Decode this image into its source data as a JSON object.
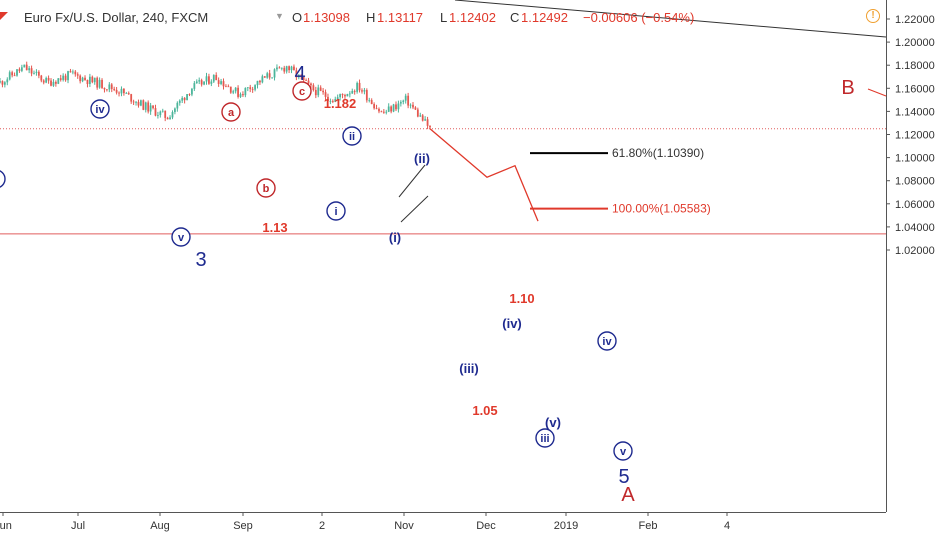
{
  "header": {
    "symbol": "Euro Fx/U.S. Dollar, 240, FXCM",
    "open_label": "O",
    "open": "1.13098",
    "high_label": "H",
    "high": "1.13117",
    "low_label": "L",
    "low": "1.12402",
    "close_label": "C",
    "close": "1.12492",
    "change": "−0.00606 (−0.54%)",
    "symbol_color": "#e0392b",
    "warning_icon": "warning-icon"
  },
  "colors": {
    "up": "#4bb59a",
    "down": "#e5574f",
    "wave_red": "#c0282b",
    "wave_blue": "#1e2a8f",
    "target_red": "#e0392b",
    "price_line": "#e05d5d"
  },
  "chart_data": {
    "type": "candlestick",
    "symbol": "EURUSD",
    "timeframe": "240",
    "ylim": [
      1.005,
      1.228
    ],
    "y_ticks": [
      "1.22000",
      "1.20000",
      "1.18000",
      "1.16000",
      "1.14000",
      "1.12000",
      "1.10000",
      "1.08000",
      "1.06000",
      "1.04000",
      "1.02000"
    ],
    "x_ticks": [
      "Jun",
      "Jul",
      "Aug",
      "Sep",
      "2",
      "Nov",
      "Dec",
      "2019",
      "Feb",
      "4"
    ],
    "close_path": [
      {
        "t": "Jun",
        "y": 1.165
      },
      {
        "t": "Jun+",
        "y": 1.178
      },
      {
        "t": "Jun++",
        "y": 1.165
      },
      {
        "t": "Jul",
        "y": 1.172
      },
      {
        "t": "Jul+",
        "y": 1.165
      },
      {
        "t": "Jul++",
        "y": 1.158
      },
      {
        "t": "Aug",
        "y": 1.145
      },
      {
        "t": "Aug+",
        "y": 1.135
      },
      {
        "t": "Aug++",
        "y": 1.16
      },
      {
        "t": "Sep",
        "y": 1.17
      },
      {
        "t": "Sep+",
        "y": 1.155
      },
      {
        "t": "Sep++",
        "y": 1.168
      },
      {
        "t": "Oct",
        "y": 1.179
      },
      {
        "t": "Oct+",
        "y": 1.16
      },
      {
        "t": "Oct++",
        "y": 1.15
      },
      {
        "t": "Oct+++",
        "y": 1.162
      },
      {
        "t": "Nov",
        "y": 1.138
      },
      {
        "t": "Nov+",
        "y": 1.15
      },
      {
        "t": "Nov++",
        "y": 1.125
      }
    ],
    "projection": [
      {
        "t": "Nov++",
        "y": 1.125
      },
      {
        "t": "iii",
        "y": 1.083
      },
      {
        "t": "iv",
        "y": 1.093
      },
      {
        "t": "v",
        "y": 1.045
      }
    ],
    "horizontal_lines": [
      {
        "name": "current-close",
        "y": 1.125,
        "style": "dotted"
      },
      {
        "name": "wave-5-target",
        "y": 1.034,
        "style": "solid"
      }
    ],
    "fib_levels": [
      {
        "label": "61.80%(1.10390)",
        "y": 1.1039,
        "color": "#000000"
      },
      {
        "label": "100.00%(1.05583)",
        "y": 1.05583,
        "color": "#e0392b"
      }
    ],
    "price_labels": [
      {
        "text": "1.182",
        "y": 1.182
      },
      {
        "text": "1.13",
        "y": 1.13
      },
      {
        "text": "1.10",
        "y": 1.1
      },
      {
        "text": "1.05",
        "y": 1.05
      }
    ],
    "wave_labels": [
      {
        "text": "iv",
        "style": "blue-circle"
      },
      {
        "text": "v",
        "style": "blue-circle"
      },
      {
        "text": "3",
        "style": "blue-plain"
      },
      {
        "text": "a",
        "style": "red-circle"
      },
      {
        "text": "b",
        "style": "red-circle"
      },
      {
        "text": "c",
        "style": "red-circle"
      },
      {
        "text": "4",
        "style": "blue-plain"
      },
      {
        "text": "i",
        "style": "blue-circle"
      },
      {
        "text": "ii",
        "style": "blue-circle"
      },
      {
        "text": "(i)",
        "style": "blue-plain"
      },
      {
        "text": "(ii)",
        "style": "blue-plain"
      },
      {
        "text": "(iii)",
        "style": "blue-plain"
      },
      {
        "text": "(iv)",
        "style": "blue-plain"
      },
      {
        "text": "(v)",
        "style": "blue-plain"
      },
      {
        "text": "iii",
        "style": "blue-circle"
      },
      {
        "text": "iv",
        "style": "blue-circle"
      },
      {
        "text": "v",
        "style": "blue-circle"
      },
      {
        "text": "5",
        "style": "blue-plain"
      },
      {
        "text": "A",
        "style": "red-plain"
      },
      {
        "text": "B",
        "style": "red-plain"
      }
    ]
  }
}
